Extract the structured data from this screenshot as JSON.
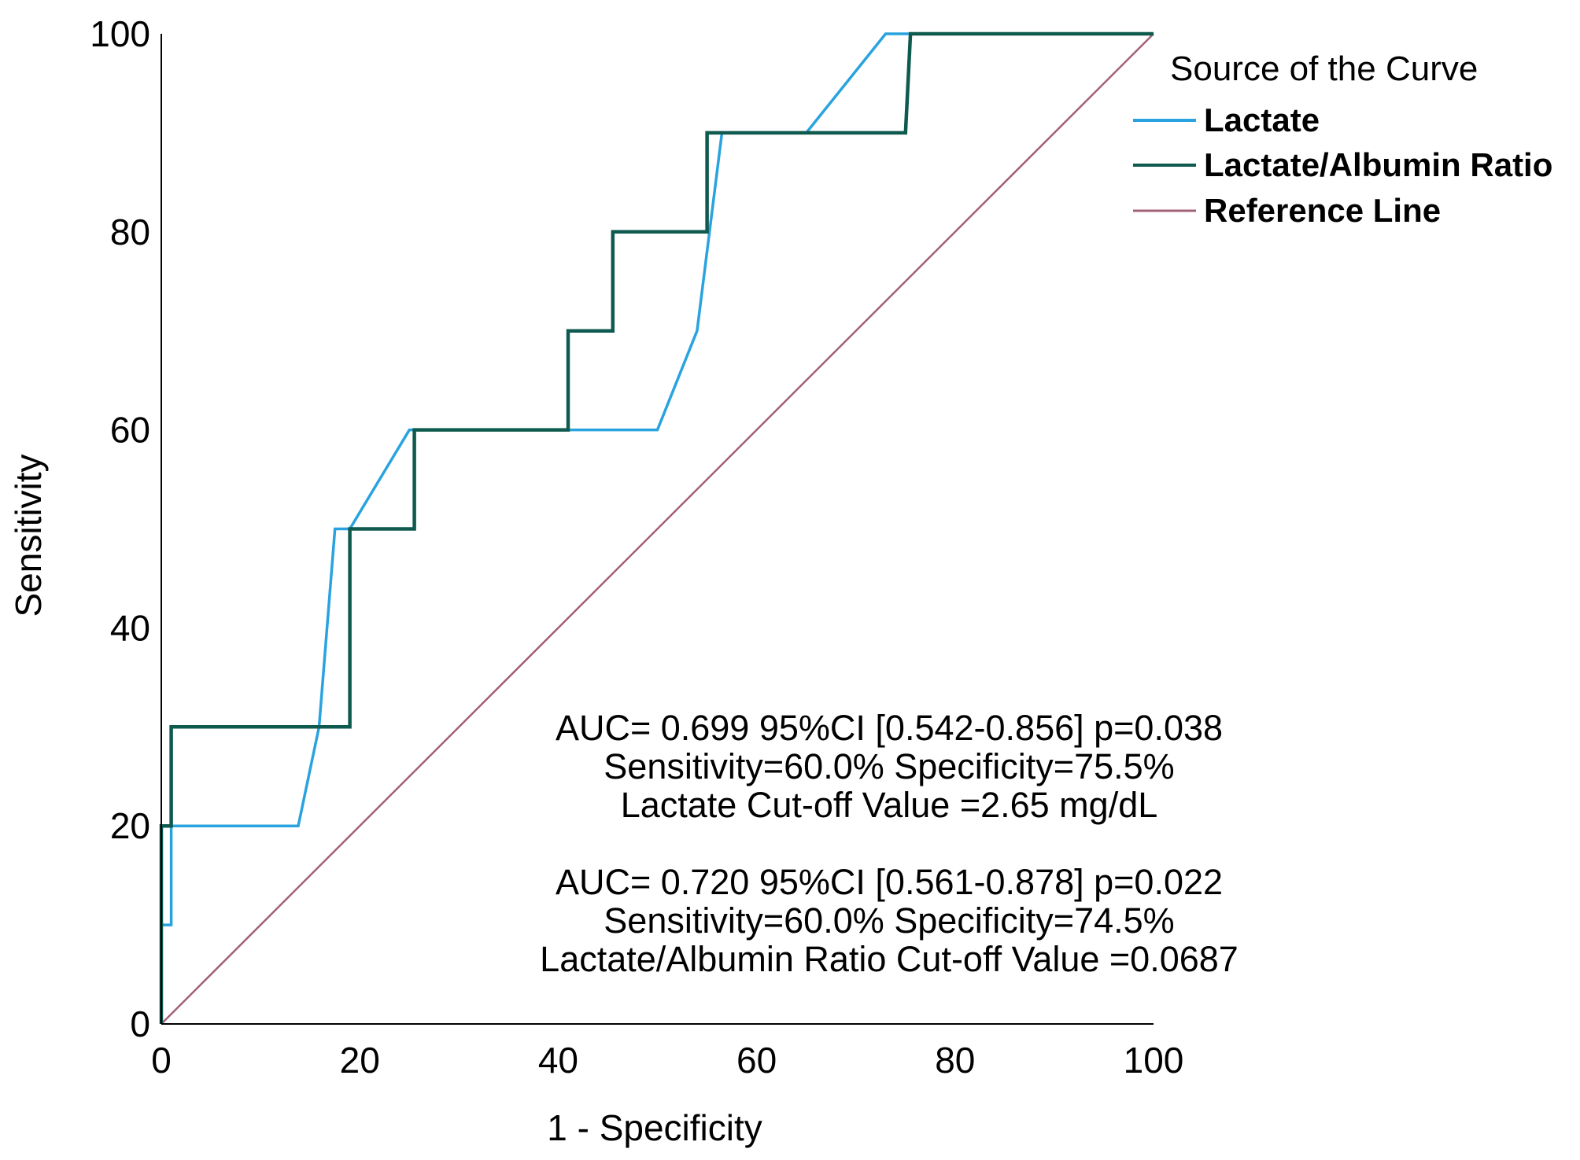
{
  "chart_data": {
    "type": "line",
    "xlabel": "1 - Specificity",
    "ylabel": "Sensitivity",
    "xlim": [
      0,
      100
    ],
    "ylim": [
      0,
      100
    ],
    "xticks": [
      0,
      20,
      40,
      60,
      80,
      100
    ],
    "yticks": [
      0,
      20,
      40,
      60,
      80,
      100
    ],
    "grid": false,
    "legend": {
      "title": "Source of the Curve",
      "placement": "top-right, outside plot"
    },
    "series": [
      {
        "name": "Lactate",
        "color": "#29a3df",
        "x": [
          0,
          0,
          1,
          1,
          1.5,
          13.8,
          15.9,
          17.5,
          19,
          25,
          41,
          50,
          54,
          56.5,
          65,
          73,
          100
        ],
        "y": [
          0,
          10,
          10,
          20,
          20,
          20,
          30,
          50,
          50,
          60,
          60,
          60,
          70,
          90,
          90,
          100,
          100
        ]
      },
      {
        "name": "Lactate/Albumin Ratio",
        "color": "#0e5a4e",
        "x": [
          0,
          0,
          1,
          1,
          19,
          19,
          25.5,
          25.5,
          41,
          41,
          45.5,
          45.5,
          55,
          55,
          75,
          75.5,
          100
        ],
        "y": [
          0,
          20,
          20,
          30,
          30,
          50,
          50,
          60,
          60,
          70,
          70,
          80,
          80,
          90,
          90,
          100,
          100
        ]
      },
      {
        "name": "Reference Line",
        "color": "#a3607a",
        "x": [
          0,
          100
        ],
        "y": [
          0,
          100
        ]
      }
    ],
    "annotations": [
      "AUC= 0.699 95%CI [0.542-0.856] p=0.038",
      "Sensitivity=60.0% Specificity=75.5%",
      "Lactate Cut-off Value =2.65 mg/dL",
      "AUC= 0.720 95%CI [0.561-0.878] p=0.022",
      "Sensitivity=60.0% Specificity=74.5%",
      "Lactate/Albumin Ratio Cut-off Value =0.0687"
    ]
  }
}
